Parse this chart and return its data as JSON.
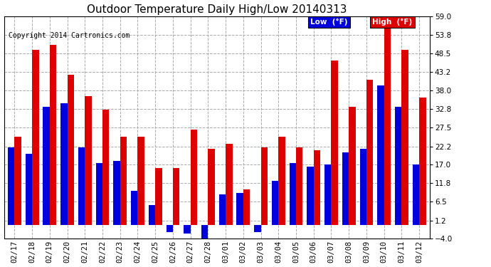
{
  "title": "Outdoor Temperature Daily High/Low 20140313",
  "copyright": "Copyright 2014 Cartronics.com",
  "legend_low": "Low  (°F)",
  "legend_high": "High  (°F)",
  "dates": [
    "02/17",
    "02/18",
    "02/19",
    "02/20",
    "02/21",
    "02/22",
    "02/23",
    "02/24",
    "02/25",
    "02/26",
    "02/27",
    "02/28",
    "03/01",
    "03/02",
    "03/03",
    "03/04",
    "03/05",
    "03/06",
    "03/07",
    "03/08",
    "03/09",
    "03/10",
    "03/11",
    "03/12"
  ],
  "high": [
    25.0,
    49.5,
    51.0,
    42.5,
    36.5,
    32.5,
    25.0,
    25.0,
    16.0,
    16.0,
    27.0,
    21.5,
    23.0,
    10.0,
    22.0,
    25.0,
    22.0,
    21.0,
    46.5,
    33.5,
    41.0,
    59.0,
    49.5,
    36.0
  ],
  "low": [
    22.0,
    20.0,
    33.5,
    34.5,
    22.0,
    17.5,
    18.0,
    9.5,
    5.5,
    -2.0,
    -2.5,
    -4.5,
    8.5,
    9.0,
    -2.0,
    12.5,
    17.5,
    16.5,
    17.0,
    20.5,
    21.5,
    39.5,
    33.5,
    17.0
  ],
  "ylim": [
    -4.0,
    59.0
  ],
  "yticks": [
    -4.0,
    1.2,
    6.5,
    11.8,
    17.0,
    22.2,
    27.5,
    32.8,
    38.0,
    43.2,
    48.5,
    53.8,
    59.0
  ],
  "bar_width": 0.38,
  "color_low": "#0000dd",
  "color_high": "#dd0000",
  "bg_color": "#ffffff",
  "grid_color": "#aaaaaa",
  "title_fontsize": 11,
  "tick_fontsize": 7.5,
  "copyright_fontsize": 7
}
